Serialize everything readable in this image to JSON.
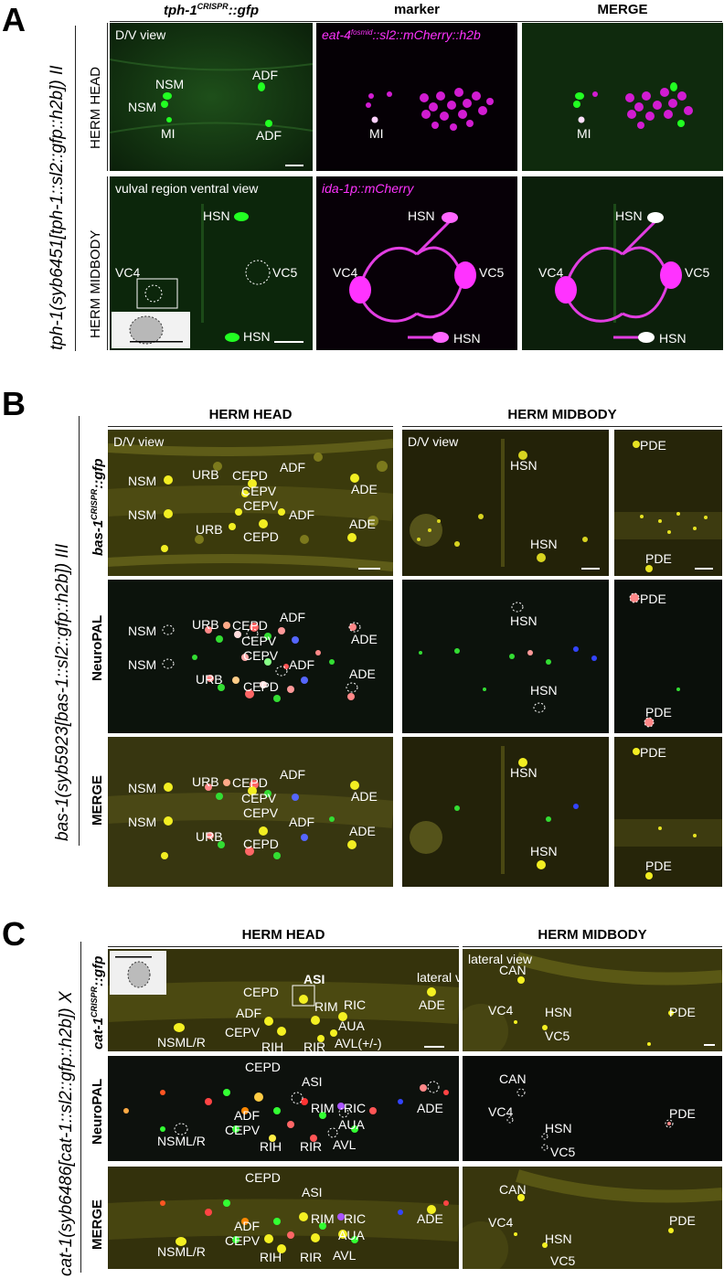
{
  "panelA": {
    "letter": "A",
    "strain": "tph-1(syb6451[tph-1::sl2::gfp::h2b]) II",
    "columns": [
      "tph-1CRISPR::gfp",
      "marker",
      "MERGE"
    ],
    "rows": [
      "HERM HEAD",
      "HERM MIDBODY"
    ],
    "head": {
      "view": "D/V view",
      "marker": "eat-4fosmid::sl2::mCherry::h2b",
      "labels": [
        "NSM",
        "NSM",
        "ADF",
        "ADF",
        "MI"
      ]
    },
    "midbody": {
      "view": "vulval region ventral view",
      "marker": "ida-1p::mCherry",
      "labels": [
        "HSN",
        "VC4",
        "VC5",
        "HSN"
      ]
    }
  },
  "panelB": {
    "letter": "B",
    "strain": "bas-1(syb5923[bas-1::sl2::gfp::h2b]) III",
    "columns": [
      "HERM HEAD",
      "HERM MIDBODY"
    ],
    "rows": [
      "bas-1CRISPR::gfp",
      "NeuroPAL",
      "MERGE"
    ],
    "view": "D/V view",
    "headLabels": [
      "NSM",
      "NSM",
      "URB",
      "URB",
      "CEPD",
      "CEPD",
      "CEPV",
      "CEPV",
      "ADF",
      "ADF",
      "ADE",
      "ADE"
    ],
    "midLabels": [
      "HSN",
      "HSN",
      "PDE",
      "PDE"
    ]
  },
  "panelC": {
    "letter": "C",
    "strain": "cat-1(syb6486[cat-1::sl2::gfp::h2b]) X",
    "columns": [
      "HERM HEAD",
      "HERM MIDBODY"
    ],
    "rows": [
      "cat-1CRISPR::gfp",
      "NeuroPAL",
      "MERGE"
    ],
    "headView": "lateral view",
    "midView": "lateral view",
    "headLabels": [
      "CEPD",
      "ASI",
      "RIM",
      "RIC",
      "ADF",
      "CEPV",
      "RIH",
      "RIR",
      "AUA",
      "AVL(+/-)",
      "AVL",
      "NSML/R",
      "ADE"
    ],
    "midLabels": [
      "CAN",
      "VC4",
      "HSN",
      "VC5",
      "PDE"
    ]
  }
}
